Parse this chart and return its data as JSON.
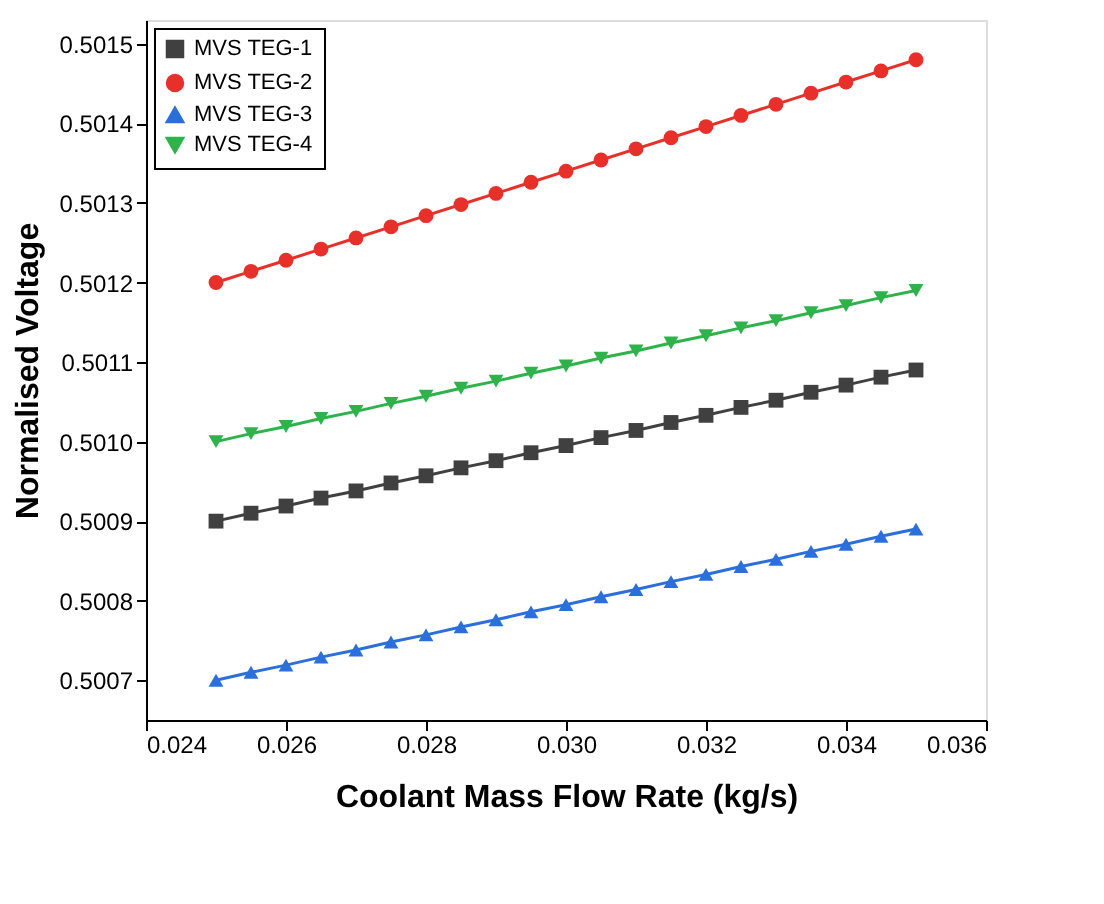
{
  "chart_data": {
    "type": "line",
    "xlabel": "Coolant Mass Flow Rate (kg/s)",
    "ylabel": "Normalised Voltage",
    "x": [
      0.025,
      0.0255,
      0.026,
      0.0265,
      0.027,
      0.0275,
      0.028,
      0.0285,
      0.029,
      0.0295,
      0.03,
      0.0305,
      0.031,
      0.0315,
      0.032,
      0.0325,
      0.033,
      0.0335,
      0.034,
      0.0345,
      0.035
    ],
    "series": [
      {
        "name": "MVS TEG-1",
        "color": "#404040",
        "marker": "square",
        "values": [
          0.5009,
          0.50091,
          0.500919,
          0.500929,
          0.500938,
          0.500948,
          0.500957,
          0.500967,
          0.500976,
          0.500986,
          0.500995,
          0.501005,
          0.501014,
          0.501024,
          0.501033,
          0.501043,
          0.501052,
          0.501062,
          0.501071,
          0.501081,
          0.50109
        ]
      },
      {
        "name": "MVS TEG-2",
        "color": "#e8302a",
        "marker": "circle",
        "values": [
          0.5012,
          0.501214,
          0.501228,
          0.501242,
          0.501256,
          0.50127,
          0.501284,
          0.501298,
          0.501312,
          0.501326,
          0.50134,
          0.501354,
          0.501368,
          0.501382,
          0.501396,
          0.50141,
          0.501424,
          0.501438,
          0.501452,
          0.501466,
          0.50148
        ]
      },
      {
        "name": "MVS TEG-3",
        "color": "#2a6fdb",
        "marker": "triangle",
        "values": [
          0.5007,
          0.50071,
          0.500719,
          0.500729,
          0.500738,
          0.500748,
          0.500757,
          0.500767,
          0.500776,
          0.500786,
          0.500795,
          0.500805,
          0.500814,
          0.500824,
          0.500833,
          0.500843,
          0.500852,
          0.500862,
          0.500871,
          0.500881,
          0.50089
        ]
      },
      {
        "name": "MVS TEG-4",
        "color": "#2db34a",
        "marker": "triangle-down",
        "values": [
          0.501,
          0.50101,
          0.501019,
          0.501029,
          0.501038,
          0.501048,
          0.501057,
          0.501067,
          0.501076,
          0.501086,
          0.501095,
          0.501105,
          0.501114,
          0.501124,
          0.501133,
          0.501143,
          0.501152,
          0.501162,
          0.501171,
          0.501181,
          0.50119
        ]
      }
    ],
    "xlim": [
      0.024,
      0.036
    ],
    "xticks": [
      {
        "value": 0.024,
        "label": "0.024"
      },
      {
        "value": 0.026,
        "label": "0.026"
      },
      {
        "value": 0.028,
        "label": "0.028"
      },
      {
        "value": 0.03,
        "label": "0.030"
      },
      {
        "value": 0.032,
        "label": "0.032"
      },
      {
        "value": 0.034,
        "label": "0.034"
      },
      {
        "value": 0.036,
        "label": "0.036"
      }
    ],
    "ylim": [
      0.50065,
      0.50153
    ],
    "yticks": [
      0.5007,
      0.5008,
      0.5009,
      {
        "value": 0.501,
        "label": "0.5010"
      },
      0.5011,
      0.5012,
      0.5013,
      0.5014,
      0.5015
    ],
    "grid": false,
    "legend": "top left",
    "line_style": "solid"
  }
}
